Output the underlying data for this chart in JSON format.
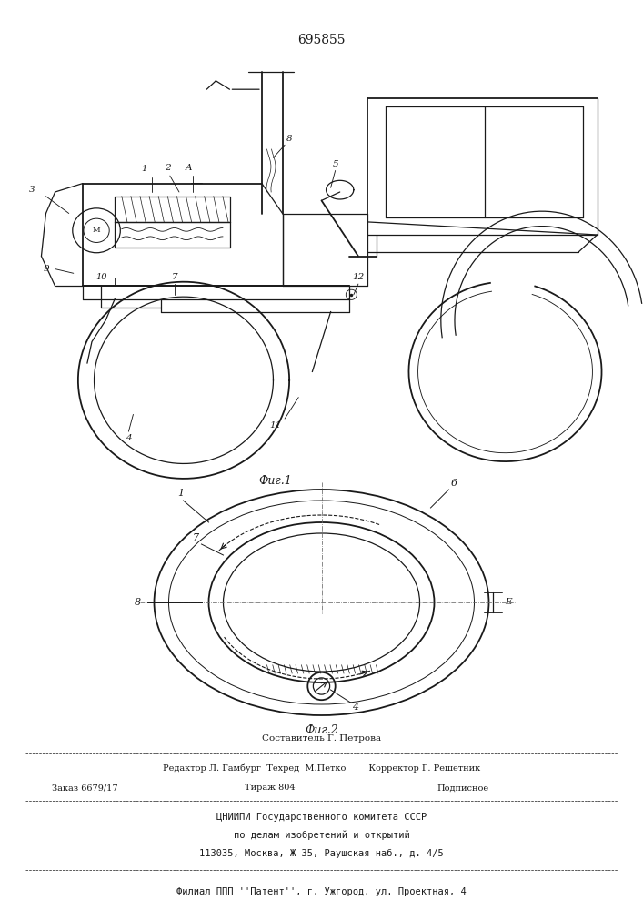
{
  "patent_number": "695855",
  "fig1_caption": "Фиг.1",
  "fig2_caption": "Фиг.2",
  "footer_line1": "Составитель Г. Петрова",
  "footer_line2": "Редактор Л. Гамбург  Техред  М.Петко        Корректор Г. Решетник",
  "footer_line3a": "Заказ 6679/17",
  "footer_line3b": "Тираж 804",
  "footer_line3c": "Подписное",
  "footer_line4": "ЦНИИПИ Государственного комитета СССР",
  "footer_line5": "по делам изобретений и открытий",
  "footer_line6": "113035, Москва, Ж-35, Раушская наб., д. 4/5",
  "footer_line7": "Филиал ППП ''Патент'', г. Ужгород, ул. Проектная, 4",
  "bg_color": "#ffffff",
  "line_color": "#1a1a1a",
  "text_color": "#1a1a1a"
}
